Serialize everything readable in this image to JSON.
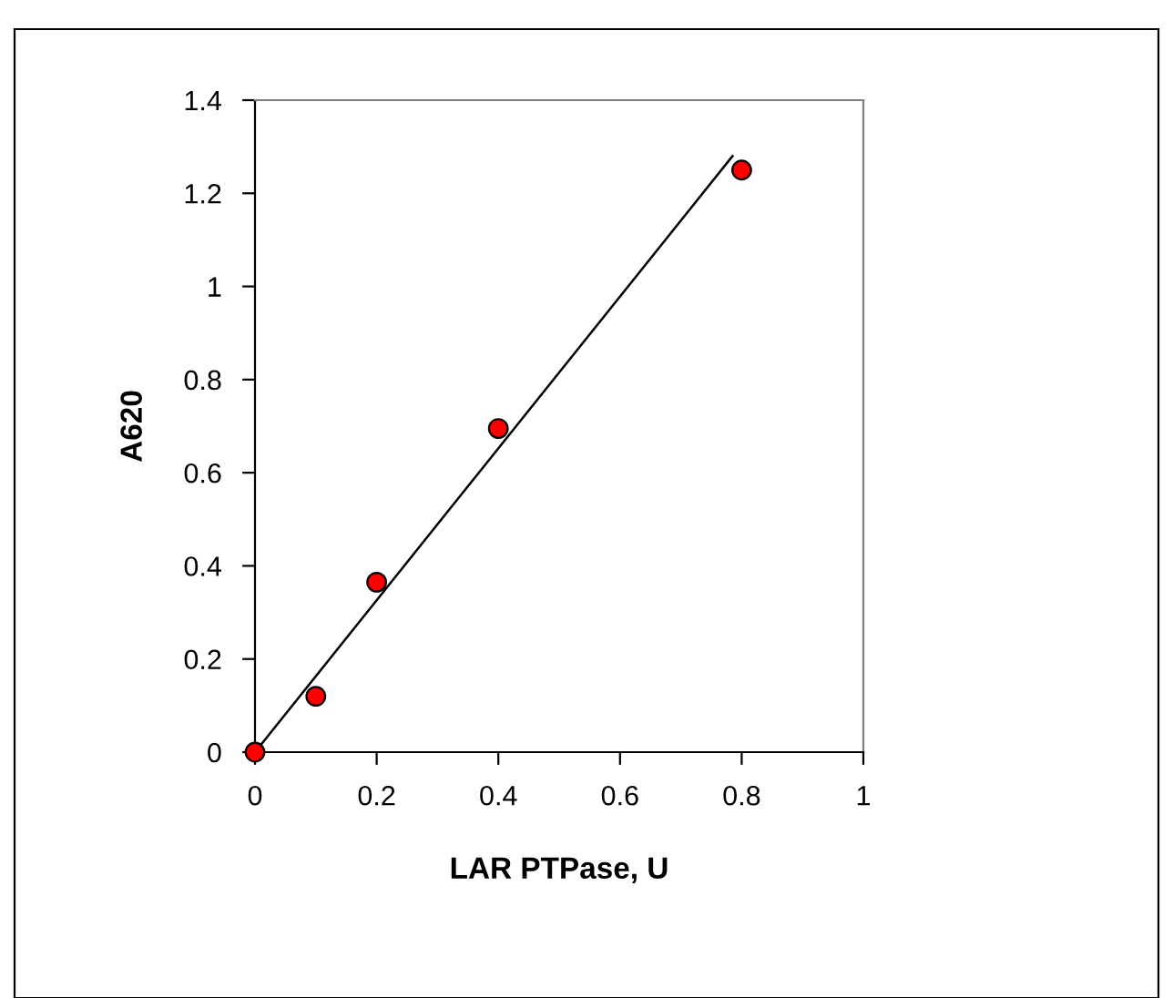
{
  "chart_data": {
    "type": "scatter",
    "xlabel": "LAR PTPase, U",
    "ylabel": "A620",
    "series": [
      {
        "color": "#ff0000",
        "marker": "circle",
        "x": [
          0,
          0.1,
          0.2,
          0.4,
          0.8
        ],
        "values": [
          0,
          0.12,
          0.365,
          0.695,
          1.25
        ]
      },
      {
        "type": "line",
        "color": "#000000",
        "marker": "none",
        "line_style": "solid",
        "x": [
          0,
          0.785
        ],
        "values": [
          0,
          1.28
        ]
      }
    ],
    "xlim": [
      0,
      1
    ],
    "xticks": [
      0,
      0.2,
      0.4,
      0.6,
      0.8,
      1
    ],
    "ylim": [
      0,
      1.4
    ],
    "yticks": [
      0,
      0.2,
      0.4,
      0.6,
      0.8,
      1,
      1.2,
      1.4
    ],
    "grid": false,
    "legend": false
  }
}
